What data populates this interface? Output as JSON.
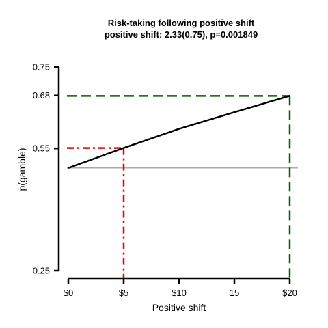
{
  "chart_data": {
    "type": "line",
    "title": "Risk-taking following positive shift",
    "subtitle": "positive shift: 2.33(0.75), p=0.001849",
    "xlabel": "Positive shift",
    "ylabel": "p(gamble)",
    "xlim": [
      0,
      20
    ],
    "ylim": [
      0.25,
      0.75
    ],
    "x_ticks": [
      {
        "value": 0,
        "label": "$0"
      },
      {
        "value": 5,
        "label": "$5"
      },
      {
        "value": 10,
        "label": "$10"
      },
      {
        "value": 15,
        "label": "15"
      },
      {
        "value": 20,
        "label": "$20"
      }
    ],
    "y_ticks": [
      {
        "value": 0.25,
        "label": "0.25"
      },
      {
        "value": 0.55,
        "label": "0.55"
      },
      {
        "value": 0.68,
        "label": "0.68"
      },
      {
        "value": 0.75,
        "label": "0.75"
      }
    ],
    "series": [
      {
        "x": [
          0,
          5,
          10,
          15,
          20
        ],
        "y": [
          0.502,
          0.551,
          0.598,
          0.639,
          0.679
        ],
        "color": "#000000"
      }
    ],
    "reference_lines": [
      {
        "orientation": "horizontal",
        "value": 0.502,
        "color": "#aaaaaa",
        "style": "solid"
      }
    ],
    "guides": [
      {
        "x": 5,
        "y": 0.551,
        "color": "#ee0000",
        "style": "dashdot"
      },
      {
        "x": 20,
        "y": 0.679,
        "color": "#006400",
        "style": "dashed"
      }
    ],
    "grid": false,
    "legend": "none"
  }
}
